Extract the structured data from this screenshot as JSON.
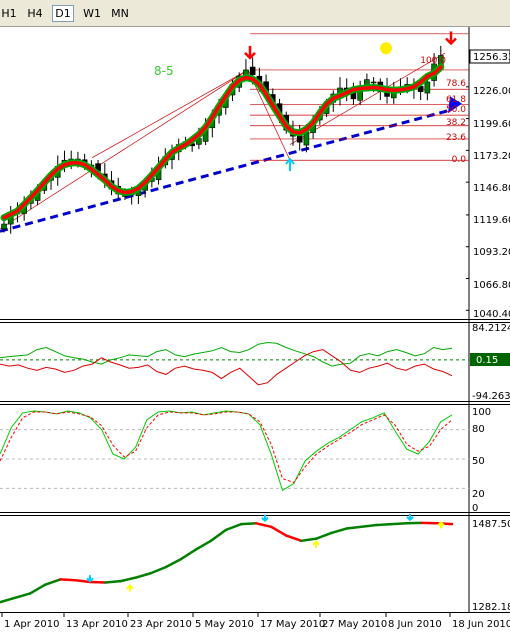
{
  "toolbar": {
    "timeframes": [
      "H1",
      "H4",
      "D1",
      "W1",
      "MN"
    ],
    "active": "D1"
  },
  "colors": {
    "candle_up": "#008000",
    "candle_down": "#000000",
    "ma_line": "#ff0000",
    "ma_shadow": "#00aa00",
    "trendline": "#0000cc",
    "fib": "#cc0000",
    "osc1_green": "#00aa00",
    "osc1_red": "#dd0000",
    "level_green": "#008000",
    "stoch_main": "#00cc00",
    "stoch_signal": "#ff0000",
    "ma3_green": "#008000",
    "ma3_red": "#ff0000",
    "arrow_red": "#ff0000",
    "arrow_blue": "#0000ff",
    "arrow_cyan": "#00ccff",
    "arrow_yellow": "#ffff00",
    "marker_yellow": "#ffee00",
    "wave_label": "#33cc33"
  },
  "main_panel": {
    "wave_label": "8-5",
    "price_labels": [
      "1226.00",
      "1199.60",
      "1173.20",
      "1146.80",
      "1119.60",
      "1093.20",
      "1066.80",
      "1040.40"
    ],
    "current_price": "1256.33",
    "fib_levels": [
      "100.0",
      "78.6",
      "61.8",
      "50.0",
      "38.2",
      "23.6",
      "0.0"
    ]
  },
  "osc_panel": {
    "top_label": "84.2124",
    "bottom_label": "-94.2632",
    "level_badge": "0.15"
  },
  "stoch_panel": {
    "levels": [
      "100",
      "80",
      "50",
      "20",
      "0"
    ]
  },
  "ma_panel": {
    "top_label": "1487.501",
    "bottom_label": "1282.182"
  },
  "x_axis": {
    "dates": [
      "1 Apr 2010",
      "13 Apr 2010",
      "23 Apr 2010",
      "5 May 2010",
      "17 May 2010",
      "27 May 2010",
      "8 Jun 2010",
      "18 Jun 2010"
    ]
  },
  "chart_data": [
    {
      "type": "candlestick",
      "title": "",
      "y_axis_ticks": [
        1226.0,
        1199.6,
        1173.2,
        1146.8,
        1119.6,
        1093.2,
        1066.8,
        1040.4
      ],
      "ylim": [
        1034,
        1274
      ],
      "x_tick_labels": [
        "1 Apr 2010",
        "13 Apr 2010",
        "23 Apr 2010",
        "5 May 2010",
        "17 May 2010",
        "27 May 2010",
        "8 Jun 2010",
        "18 Jun 2010"
      ],
      "last_price": 1256.33,
      "close_series": [
        1112,
        1118,
        1122,
        1128,
        1134,
        1140,
        1146,
        1152,
        1160,
        1165,
        1166,
        1163,
        1160,
        1161,
        1156,
        1148,
        1141,
        1137,
        1135,
        1138,
        1140,
        1145,
        1150,
        1160,
        1168,
        1172,
        1178,
        1180,
        1177,
        1183,
        1192,
        1200,
        1210,
        1218,
        1228,
        1235,
        1240,
        1236,
        1229,
        1222,
        1212,
        1200,
        1190,
        1185,
        1180,
        1188,
        1196,
        1205,
        1212,
        1220,
        1225,
        1220,
        1216,
        1225,
        1232,
        1230,
        1222,
        1218,
        1222,
        1226,
        1228,
        1224,
        1222,
        1230,
        1245,
        1252
      ],
      "fibonacci": {
        "levels": [
          100.0,
          78.6,
          61.8,
          50.0,
          38.2,
          23.6,
          0.0
        ],
        "high": 1240,
        "low": 1165
      },
      "wave_label": "8-5"
    },
    {
      "type": "line",
      "name": "oscillator",
      "ylim": [
        -94.2632,
        84.2124
      ],
      "level": 0.15,
      "series": [
        {
          "values": [
            5,
            8,
            10,
            12,
            25,
            30,
            20,
            10,
            5,
            2,
            -5,
            -10,
            0,
            5,
            12,
            10,
            8,
            20,
            25,
            12,
            8,
            14,
            18,
            22,
            30,
            20,
            18,
            25,
            38,
            42,
            40,
            30,
            22,
            15,
            8,
            -5,
            -15,
            -10,
            -8,
            10,
            15,
            10,
            20,
            25,
            18,
            10,
            15,
            30,
            25,
            28
          ]
        },
        {
          "values": [
            -10,
            -15,
            -12,
            -20,
            -25,
            -18,
            -22,
            -30,
            -25,
            -15,
            -10,
            5,
            -5,
            -12,
            -20,
            -18,
            -12,
            -28,
            -35,
            -20,
            -15,
            -22,
            -25,
            -30,
            -45,
            -30,
            -20,
            -40,
            -60,
            -55,
            -35,
            -20,
            -5,
            10,
            20,
            25,
            10,
            -5,
            -25,
            -30,
            -20,
            -15,
            -8,
            -20,
            -25,
            -15,
            -10,
            -22,
            -28,
            -38
          ]
        }
      ]
    },
    {
      "type": "line",
      "name": "stochastic",
      "ylim": [
        0,
        100
      ],
      "levels": [
        100,
        80,
        50,
        20,
        0
      ],
      "series": [
        {
          "values": [
            55,
            82,
            97,
            99,
            98,
            96,
            99,
            97,
            92,
            80,
            55,
            50,
            62,
            90,
            98,
            99,
            97,
            98,
            95,
            97,
            99,
            98,
            96,
            85,
            55,
            18,
            25,
            48,
            58,
            66,
            72,
            80,
            88,
            92,
            97,
            78,
            60,
            55,
            68,
            88,
            95
          ]
        },
        {
          "values": [
            48,
            72,
            92,
            98,
            98,
            96,
            98,
            96,
            93,
            84,
            64,
            52,
            58,
            82,
            95,
            98,
            97,
            97,
            95,
            96,
            98,
            98,
            96,
            88,
            65,
            30,
            26,
            42,
            55,
            63,
            70,
            77,
            85,
            90,
            95,
            84,
            65,
            58,
            63,
            80,
            90
          ]
        }
      ]
    },
    {
      "type": "line",
      "name": "moving average",
      "ylim": [
        1282.182,
        1487.501
      ],
      "series": [
        {
          "values": [
            1300,
            1310,
            1320,
            1340,
            1352,
            1350,
            1346,
            1345,
            1348,
            1356,
            1366,
            1380,
            1398,
            1420,
            1440,
            1465,
            1478,
            1480,
            1472,
            1452,
            1440,
            1445,
            1458,
            1468,
            1472,
            1476,
            1478,
            1480,
            1481,
            1480,
            1478
          ]
        }
      ]
    }
  ]
}
